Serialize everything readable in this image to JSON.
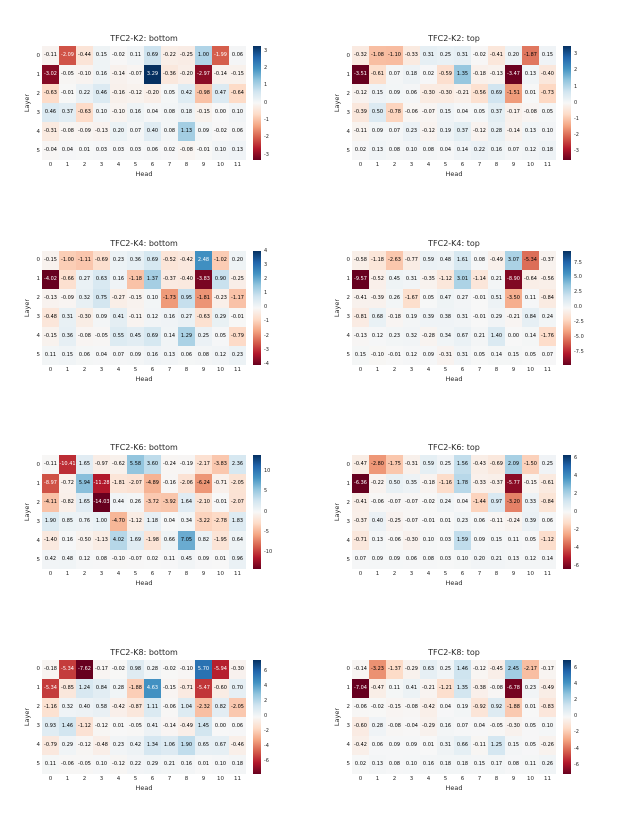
{
  "page": {
    "background": "#ffffff",
    "colormap": "RdBu",
    "layout": "4x2-heatmap-grid"
  },
  "chart_data": [
    {
      "type": "heatmap",
      "title": "TFC2-K2: bottom",
      "xlabel": "Head",
      "ylabel": "Layer",
      "x_ticks": [
        "0",
        "1",
        "2",
        "3",
        "4",
        "5",
        "6",
        "7",
        "8",
        "9",
        "10",
        "11"
      ],
      "y_ticks": [
        "0",
        "1",
        "2",
        "3",
        "4",
        "5"
      ],
      "vmax": 3.29,
      "colorbar_ticks": [
        "3",
        "2",
        "1",
        "0",
        "-1",
        "-2",
        "-3"
      ],
      "values": [
        [
          -0.11,
          -2.09,
          -0.44,
          0.15,
          -0.02,
          0.11,
          0.69,
          -0.22,
          -0.25,
          1.0,
          -1.99,
          0.06
        ],
        [
          -3.02,
          -0.05,
          -0.1,
          0.16,
          -0.14,
          -0.07,
          3.29,
          -0.36,
          -0.2,
          -2.97,
          -0.14,
          -0.15
        ],
        [
          -0.63,
          -0.01,
          0.22,
          0.46,
          -0.16,
          -0.12,
          -0.2,
          0.05,
          0.42,
          -0.98,
          0.47,
          -0.64
        ],
        [
          0.46,
          0.37,
          -0.63,
          0.1,
          -0.1,
          0.16,
          0.04,
          0.08,
          0.18,
          -0.15,
          0.0,
          0.1
        ],
        [
          -0.31,
          -0.08,
          -0.09,
          -0.13,
          0.2,
          0.07,
          0.4,
          0.08,
          1.13,
          0.09,
          -0.02,
          0.06
        ],
        [
          -0.04,
          0.04,
          0.01,
          0.03,
          0.03,
          0.03,
          0.06,
          0.02,
          -0.08,
          -0.01,
          0.1,
          0.13
        ]
      ]
    },
    {
      "type": "heatmap",
      "title": "TFC2-K2: top",
      "xlabel": "Head",
      "ylabel": "Layer",
      "x_ticks": [
        "0",
        "1",
        "2",
        "3",
        "4",
        "5",
        "6",
        "7",
        "8",
        "9",
        "10",
        "11"
      ],
      "y_ticks": [
        "0",
        "1",
        "2",
        "3",
        "4",
        "5"
      ],
      "vmax": 3.51,
      "colorbar_ticks": [
        "3",
        "2",
        "1",
        "0",
        "-1",
        "-2",
        "-3"
      ],
      "values": [
        [
          -0.32,
          -1.08,
          -1.1,
          -0.33,
          0.31,
          0.25,
          0.31,
          -0.02,
          -0.41,
          0.2,
          -1.87,
          0.15
        ],
        [
          -3.51,
          -0.61,
          0.07,
          0.18,
          0.02,
          -0.59,
          1.35,
          -0.18,
          -0.13,
          -3.47,
          0.13,
          -0.4
        ],
        [
          -0.12,
          0.15,
          0.09,
          0.06,
          -0.3,
          -0.3,
          -0.21,
          -0.56,
          0.69,
          -1.51,
          0.01,
          -0.73
        ],
        [
          -0.39,
          0.5,
          -0.78,
          -0.06,
          -0.07,
          0.15,
          0.04,
          0.05,
          0.37,
          -0.17,
          -0.08,
          0.05
        ],
        [
          -0.11,
          0.09,
          0.07,
          0.23,
          -0.12,
          0.19,
          0.37,
          -0.12,
          0.28,
          -0.14,
          0.13,
          0.1
        ],
        [
          0.02,
          0.13,
          0.08,
          0.1,
          0.08,
          0.04,
          0.14,
          0.22,
          0.16,
          0.07,
          0.12,
          0.18
        ]
      ]
    },
    {
      "type": "heatmap",
      "title": "TFC2-K4: bottom",
      "xlabel": "Head",
      "ylabel": "Layer",
      "x_ticks": [
        "0",
        "1",
        "2",
        "3",
        "4",
        "5",
        "6",
        "7",
        "8",
        "9",
        "10",
        "11"
      ],
      "y_ticks": [
        "0",
        "1",
        "2",
        "3",
        "4",
        "5"
      ],
      "vmax": 4.02,
      "colorbar_ticks": [
        "4",
        "3",
        "2",
        "1",
        "0",
        "-1",
        "-2",
        "-3",
        "-4"
      ],
      "values": [
        [
          -0.15,
          -1.0,
          -1.11,
          -0.69,
          0.23,
          0.36,
          0.69,
          -0.52,
          -0.42,
          2.48,
          -1.02,
          0.2
        ],
        [
          -4.02,
          -0.66,
          0.27,
          0.63,
          0.16,
          -1.18,
          1.37,
          -0.37,
          -0.4,
          -3.83,
          0.9,
          -0.25
        ],
        [
          -0.13,
          -0.09,
          0.32,
          0.75,
          -0.27,
          -0.15,
          0.1,
          -1.73,
          0.95,
          -1.81,
          -0.23,
          -1.17
        ],
        [
          -0.48,
          0.31,
          -0.3,
          0.09,
          0.41,
          -0.11,
          0.12,
          0.16,
          0.27,
          -0.63,
          0.29,
          -0.01
        ],
        [
          -0.15,
          0.36,
          -0.08,
          -0.05,
          0.55,
          0.45,
          0.69,
          0.14,
          1.29,
          0.25,
          0.05,
          -0.79
        ],
        [
          0.11,
          0.15,
          0.06,
          0.04,
          0.07,
          0.09,
          0.16,
          0.13,
          0.06,
          0.08,
          0.12,
          0.23
        ]
      ]
    },
    {
      "type": "heatmap",
      "title": "TFC2-K4: top",
      "xlabel": "Head",
      "ylabel": "Layer",
      "x_ticks": [
        "0",
        "1",
        "2",
        "3",
        "4",
        "5",
        "6",
        "7",
        "8",
        "9",
        "10",
        "11"
      ],
      "y_ticks": [
        "0",
        "1",
        "2",
        "3",
        "4",
        "5"
      ],
      "vmax": 9.57,
      "colorbar_ticks": [
        "7.5",
        "5.0",
        "2.5",
        "0.0",
        "-2.5",
        "-5.0",
        "-7.5"
      ],
      "values": [
        [
          -0.58,
          -1.18,
          -2.63,
          -0.77,
          0.59,
          0.48,
          1.61,
          0.08,
          -0.49,
          3.07,
          -5.34,
          -0.37
        ],
        [
          -9.57,
          -0.52,
          0.45,
          0.31,
          -0.35,
          -1.12,
          3.01,
          -1.14,
          0.21,
          -8.9,
          -0.64,
          -0.56
        ],
        [
          -0.41,
          -0.39,
          0.26,
          -1.67,
          0.05,
          0.47,
          0.27,
          -0.01,
          0.51,
          -3.5,
          0.11,
          -0.84
        ],
        [
          -0.81,
          0.68,
          -0.18,
          0.19,
          0.39,
          0.38,
          0.31,
          -0.01,
          0.29,
          -0.21,
          0.84,
          0.24
        ],
        [
          -0.13,
          0.12,
          0.23,
          0.32,
          -0.28,
          0.34,
          0.67,
          0.21,
          1.4,
          0.0,
          0.14,
          -1.76
        ],
        [
          0.15,
          -0.1,
          -0.01,
          0.12,
          0.09,
          -0.31,
          0.31,
          0.05,
          0.14,
          0.15,
          0.05,
          0.07
        ]
      ]
    },
    {
      "type": "heatmap",
      "title": "TFC2-K6: bottom",
      "xlabel": "Head",
      "ylabel": "Layer",
      "x_ticks": [
        "0",
        "1",
        "2",
        "3",
        "4",
        "5",
        "6",
        "7",
        "8",
        "9",
        "10",
        "11"
      ],
      "y_ticks": [
        "0",
        "1",
        "2",
        "3",
        "4",
        "5"
      ],
      "vmax": 14.03,
      "colorbar_ticks": [
        "10",
        "5",
        "0",
        "-5",
        "-10"
      ],
      "values": [
        [
          -0.11,
          -10.41,
          1.65,
          -0.97,
          -0.62,
          5.58,
          3.6,
          -0.24,
          -0.19,
          -2.17,
          -3.83,
          2.36
        ],
        [
          -8.97,
          -0.72,
          5.94,
          -11.28,
          -1.81,
          -2.07,
          -4.89,
          -0.16,
          -2.06,
          -6.24,
          -0.71,
          -2.05
        ],
        [
          -4.11,
          -0.82,
          1.65,
          -14.03,
          0.44,
          0.26,
          -3.72,
          -3.92,
          1.64,
          -2.1,
          -0.01,
          -2.07
        ],
        [
          1.9,
          0.85,
          0.76,
          1.0,
          -4.7,
          -1.12,
          1.18,
          0.04,
          0.34,
          -3.22,
          -2.78,
          1.83
        ],
        [
          -1.4,
          0.16,
          -0.5,
          -1.13,
          4.02,
          1.69,
          -1.98,
          0.66,
          7.05,
          0.82,
          -1.95,
          0.64
        ],
        [
          0.42,
          0.48,
          0.12,
          0.08,
          -0.1,
          -0.07,
          0.02,
          0.11,
          0.45,
          0.09,
          0.01,
          0.96
        ]
      ]
    },
    {
      "type": "heatmap",
      "title": "TFC2-K6: top",
      "xlabel": "Head",
      "ylabel": "Layer",
      "x_ticks": [
        "0",
        "1",
        "2",
        "3",
        "4",
        "5",
        "6",
        "7",
        "8",
        "9",
        "10",
        "11"
      ],
      "y_ticks": [
        "0",
        "1",
        "2",
        "3",
        "4",
        "5"
      ],
      "vmax": 6.36,
      "colorbar_ticks": [
        "6",
        "4",
        "2",
        "0",
        "-2",
        "-4",
        "-6"
      ],
      "values": [
        [
          -0.47,
          -2.8,
          -1.75,
          -0.31,
          0.59,
          0.25,
          1.56,
          -0.43,
          -0.69,
          2.09,
          -1.5,
          0.25
        ],
        [
          -6.36,
          -0.22,
          0.5,
          0.35,
          -0.18,
          -1.16,
          1.78,
          -0.33,
          -0.37,
          -5.77,
          -0.15,
          -0.61
        ],
        [
          -0.41,
          -0.06,
          -0.07,
          -0.07,
          -0.02,
          0.24,
          0.04,
          -1.44,
          0.97,
          -3.2,
          0.33,
          -0.84
        ],
        [
          -0.37,
          0.4,
          -0.25,
          -0.07,
          -0.01,
          0.01,
          0.23,
          0.06,
          -0.11,
          -0.24,
          0.39,
          0.06
        ],
        [
          -0.71,
          0.13,
          -0.06,
          -0.3,
          0.1,
          0.03,
          1.59,
          0.09,
          0.15,
          0.11,
          0.05,
          -1.12
        ],
        [
          0.07,
          0.09,
          0.09,
          0.06,
          0.08,
          0.03,
          0.1,
          0.2,
          0.21,
          0.13,
          0.12,
          0.14
        ]
      ]
    },
    {
      "type": "heatmap",
      "title": "TFC2-K8: bottom",
      "xlabel": "Head",
      "ylabel": "Layer",
      "x_ticks": [
        "0",
        "1",
        "2",
        "3",
        "4",
        "5",
        "6",
        "7",
        "8",
        "9",
        "10",
        "11"
      ],
      "y_ticks": [
        "0",
        "1",
        "2",
        "3",
        "4",
        "5"
      ],
      "vmax": 7.62,
      "colorbar_ticks": [
        "6",
        "4",
        "2",
        "0",
        "-2",
        "-4",
        "-6"
      ],
      "values": [
        [
          -0.18,
          -5.34,
          -7.62,
          -0.17,
          -0.02,
          0.98,
          0.28,
          -0.02,
          -0.1,
          5.7,
          -5.94,
          -0.3
        ],
        [
          -5.34,
          -0.85,
          1.24,
          0.84,
          0.28,
          -1.88,
          4.63,
          -0.15,
          -0.71,
          -5.47,
          -0.6,
          0.7
        ],
        [
          -1.16,
          0.32,
          0.4,
          0.58,
          -0.42,
          -0.87,
          1.11,
          -0.06,
          1.04,
          -2.32,
          0.82,
          -2.05
        ],
        [
          0.93,
          1.46,
          -1.12,
          -0.12,
          0.01,
          -0.05,
          0.41,
          -0.14,
          -0.49,
          1.45,
          0.0,
          0.06
        ],
        [
          -0.79,
          0.29,
          -0.12,
          -0.48,
          0.23,
          0.42,
          1.34,
          1.06,
          1.9,
          0.65,
          0.67,
          -0.46
        ],
        [
          0.11,
          -0.06,
          -0.05,
          0.1,
          -0.12,
          0.22,
          0.29,
          0.21,
          0.16,
          0.01,
          0.1,
          0.18
        ]
      ]
    },
    {
      "type": "heatmap",
      "title": "TFC2-K8: top",
      "xlabel": "Head",
      "ylabel": "Layer",
      "x_ticks": [
        "0",
        "1",
        "2",
        "3",
        "4",
        "5",
        "6",
        "7",
        "8",
        "9",
        "10",
        "11"
      ],
      "y_ticks": [
        "0",
        "1",
        "2",
        "3",
        "4",
        "5"
      ],
      "vmax": 7.04,
      "colorbar_ticks": [
        "6",
        "4",
        "2",
        "0",
        "-2",
        "-4",
        "-6"
      ],
      "values": [
        [
          -0.14,
          -3.23,
          -1.37,
          -0.29,
          0.63,
          0.25,
          1.46,
          -0.12,
          -0.45,
          2.45,
          -2.17,
          -0.17
        ],
        [
          -7.04,
          -0.47,
          0.11,
          0.41,
          -0.21,
          -1.21,
          1.35,
          -0.38,
          -0.08,
          -6.78,
          0.23,
          -0.49
        ],
        [
          -0.06,
          -0.02,
          -0.15,
          -0.08,
          -0.42,
          0.04,
          0.19,
          -0.92,
          0.92,
          -1.88,
          0.01,
          -0.83
        ],
        [
          -0.6,
          0.28,
          -0.08,
          -0.04,
          -0.29,
          0.16,
          0.07,
          0.04,
          -0.05,
          -0.3,
          0.05,
          0.1
        ],
        [
          -0.42,
          0.06,
          0.09,
          0.09,
          0.01,
          0.31,
          0.66,
          -0.11,
          1.25,
          0.15,
          0.05,
          -0.26
        ],
        [
          0.02,
          0.13,
          0.08,
          0.1,
          0.16,
          0.18,
          0.18,
          0.15,
          0.17,
          0.08,
          0.11,
          0.26
        ]
      ]
    }
  ]
}
